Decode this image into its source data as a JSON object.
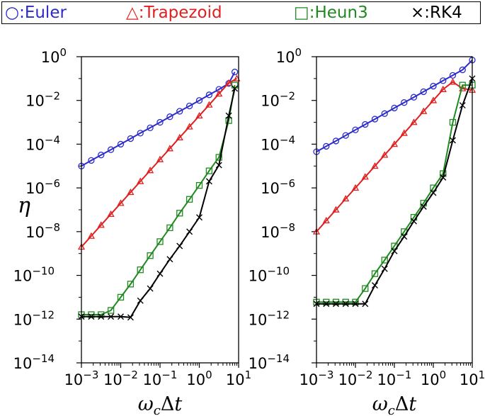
{
  "legend": {
    "items": [
      {
        "key": "euler",
        "symbol": "○",
        "label": ":Euler",
        "color": "#2b2bcc"
      },
      {
        "key": "trap",
        "symbol": "△",
        "label": ":Trapezoid",
        "color": "#e02020"
      },
      {
        "key": "heun",
        "symbol": "□",
        "label": ":Heun3",
        "color": "#1f8a1f"
      },
      {
        "key": "rk4",
        "symbol": "×",
        "label": ":RK4",
        "color": "#000000"
      }
    ]
  },
  "chart_data": [
    {
      "type": "line",
      "xscale": "log",
      "yscale": "log",
      "xlim": [
        0.001,
        10
      ],
      "ylim": [
        1e-14,
        1
      ],
      "xlabel": "ωcΔt",
      "ylabel": "η",
      "xtick_labels": [
        "10^-3",
        "10^-2",
        "10^-1",
        "10^0",
        "10^1"
      ],
      "ytick_labels": [
        "10^0",
        "10^-2",
        "10^-4",
        "10^-6",
        "10^-8",
        "10^-10",
        "10^-12",
        "10^-14"
      ],
      "series": [
        {
          "name": "Euler",
          "marker": "circle",
          "color": "#2b2bcc",
          "x": [
            0.001,
            0.00178,
            0.00316,
            0.00562,
            0.01,
            0.0178,
            0.0316,
            0.0562,
            0.1,
            0.178,
            0.316,
            0.562,
            1,
            1.78,
            3.16,
            5.62,
            8
          ],
          "y": [
            1e-05,
            1.8e-05,
            3.2e-05,
            5.6e-05,
            0.0001,
            0.00018,
            0.00032,
            0.00056,
            0.001,
            0.0018,
            0.0032,
            0.0056,
            0.01,
            0.018,
            0.032,
            0.06,
            0.2
          ]
        },
        {
          "name": "Trapezoid",
          "marker": "triangle",
          "color": "#e02020",
          "x": [
            0.001,
            0.00178,
            0.00316,
            0.00562,
            0.01,
            0.0178,
            0.0316,
            0.0562,
            0.1,
            0.178,
            0.316,
            0.562,
            1,
            1.78,
            3.16,
            5.62,
            9
          ],
          "y": [
            2e-09,
            6.3e-09,
            2e-08,
            6.3e-08,
            2e-07,
            6.3e-07,
            2e-06,
            6.3e-06,
            2e-05,
            6.3e-05,
            0.0002,
            0.00063,
            0.002,
            0.0063,
            0.02,
            0.063,
            0.1
          ]
        },
        {
          "name": "Heun3",
          "marker": "square",
          "color": "#1f8a1f",
          "x": [
            0.001,
            0.00178,
            0.00316,
            0.00562,
            0.01,
            0.0178,
            0.0316,
            0.0562,
            0.1,
            0.178,
            0.316,
            0.562,
            1,
            1.78,
            3.16,
            5.62,
            8
          ],
          "y": [
            1.6e-12,
            1.6e-12,
            1.6e-12,
            2.5e-12,
            1e-11,
            4e-11,
            1.8e-10,
            8e-10,
            3.5e-09,
            1.5e-08,
            7e-08,
            3e-07,
            1.3e-06,
            6e-06,
            2.5e-05,
            0.0012,
            0.05
          ]
        },
        {
          "name": "RK4",
          "marker": "x",
          "color": "#000000",
          "x": [
            0.001,
            0.00178,
            0.00316,
            0.00562,
            0.01,
            0.0178,
            0.0316,
            0.0562,
            0.1,
            0.178,
            0.316,
            0.562,
            1,
            1.78,
            3.16,
            5.62,
            8
          ],
          "y": [
            1.3e-12,
            1.3e-12,
            1.3e-12,
            1.3e-12,
            1.3e-12,
            1.2e-12,
            7e-12,
            2.5e-11,
            1.2e-10,
            5.5e-10,
            2.2e-09,
            1e-08,
            4.5e-08,
            2e-06,
            1.1e-05,
            0.002,
            0.035
          ]
        }
      ]
    },
    {
      "type": "line",
      "xscale": "log",
      "yscale": "log",
      "xlim": [
        0.001,
        10
      ],
      "ylim": [
        1e-14,
        1
      ],
      "xlabel": "ωcΔt",
      "ylabel": "",
      "xtick_labels": [
        "10^-3",
        "10^-2",
        "10^-1",
        "10^0",
        "10^1"
      ],
      "ytick_labels": [
        "10^0",
        "10^-2",
        "10^-4",
        "10^-6",
        "10^-8",
        "10^-10",
        "10^-12",
        "10^-14"
      ],
      "series": [
        {
          "name": "Euler",
          "marker": "circle",
          "color": "#2b2bcc",
          "x": [
            0.001,
            0.00178,
            0.00316,
            0.00562,
            0.01,
            0.0178,
            0.0316,
            0.0562,
            0.1,
            0.178,
            0.316,
            0.562,
            1,
            1.78,
            3.16,
            5.62,
            10
          ],
          "y": [
            4.5e-05,
            8e-05,
            0.00014,
            0.00025,
            0.00045,
            0.0008,
            0.0014,
            0.0025,
            0.0045,
            0.008,
            0.014,
            0.025,
            0.045,
            0.08,
            0.14,
            0.25,
            0.7
          ]
        },
        {
          "name": "Trapezoid",
          "marker": "triangle",
          "color": "#e02020",
          "x": [
            0.001,
            0.00178,
            0.00316,
            0.00562,
            0.01,
            0.0178,
            0.0316,
            0.0562,
            0.1,
            0.178,
            0.316,
            0.562,
            1,
            1.78,
            3.16,
            5.62,
            10
          ],
          "y": [
            1e-08,
            3.2e-08,
            1e-07,
            3.2e-07,
            1e-06,
            3.2e-06,
            1e-05,
            3.2e-05,
            0.0001,
            0.00032,
            0.001,
            0.0032,
            0.01,
            0.032,
            0.07,
            0.035,
            0.03
          ]
        },
        {
          "name": "Heun3",
          "marker": "square",
          "color": "#1f8a1f",
          "x": [
            0.001,
            0.00178,
            0.00316,
            0.00562,
            0.01,
            0.0178,
            0.0316,
            0.0562,
            0.1,
            0.178,
            0.316,
            0.562,
            1,
            1.78,
            3.16,
            5.62,
            10
          ],
          "y": [
            6e-12,
            6e-12,
            6e-12,
            6e-12,
            6e-12,
            2.5e-11,
            1.2e-10,
            5e-10,
            2.2e-09,
            1e-08,
            4.5e-08,
            2e-07,
            1e-06,
            4.5e-06,
            0.001,
            0.05,
            0.05
          ]
        },
        {
          "name": "RK4",
          "marker": "x",
          "color": "#000000",
          "x": [
            0.001,
            0.00178,
            0.00316,
            0.00562,
            0.01,
            0.0178,
            0.0316,
            0.0562,
            0.1,
            0.178,
            0.316,
            0.562,
            1,
            1.78,
            3.16,
            5.62,
            10
          ],
          "y": [
            5e-12,
            5e-12,
            5e-12,
            5e-12,
            5e-12,
            5e-12,
            3.5e-11,
            2e-10,
            1.3e-09,
            6e-09,
            3e-08,
            1.4e-07,
            6e-07,
            3e-06,
            0.00015,
            0.006,
            0.1
          ]
        }
      ]
    }
  ]
}
